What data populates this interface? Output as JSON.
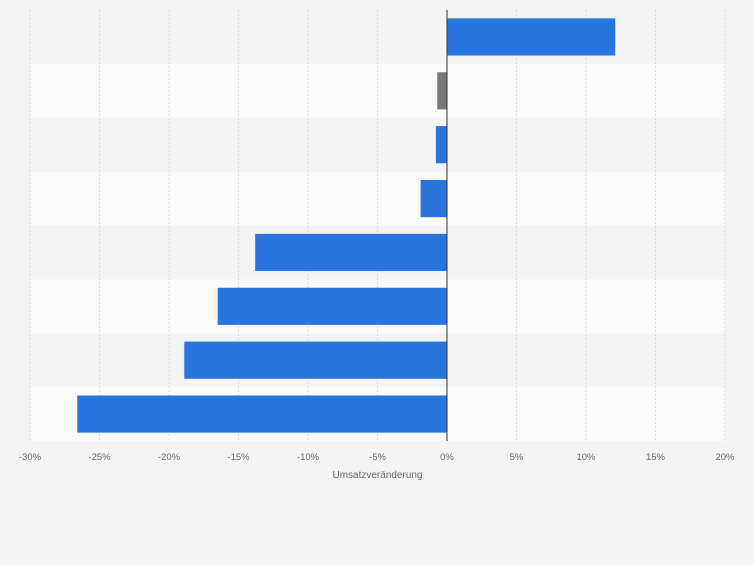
{
  "chart_data": {
    "type": "bar",
    "orientation": "horizontal",
    "xlabel": "Umsatzveränderung",
    "xlim": [
      -30,
      20
    ],
    "ticks": [
      -30,
      -25,
      -20,
      -15,
      -10,
      -5,
      0,
      5,
      10,
      15,
      20
    ],
    "tick_labels": [
      "-30%",
      "-25%",
      "-20%",
      "-15%",
      "-10%",
      "-5%",
      "0%",
      "5%",
      "10%",
      "15%",
      "20%"
    ],
    "grid": true,
    "values": [
      12.1,
      -0.7,
      -0.8,
      -1.9,
      -13.8,
      -16.5,
      -18.9,
      -26.6
    ],
    "colors": [
      "#2876dd",
      "#787878",
      "#2876dd",
      "#2876dd",
      "#2876dd",
      "#2876dd",
      "#2876dd",
      "#2876dd"
    ]
  }
}
